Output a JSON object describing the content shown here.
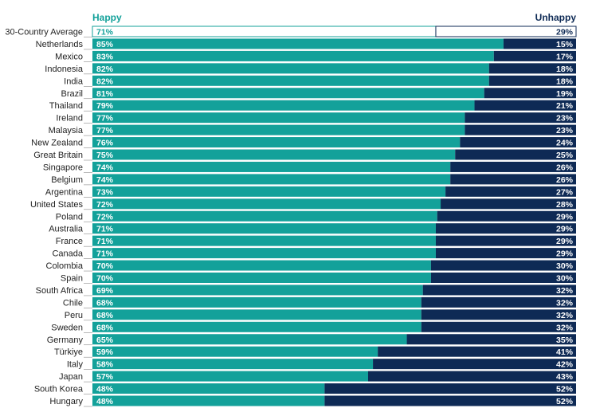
{
  "chart_data": {
    "type": "bar",
    "stacked": true,
    "orientation": "horizontal",
    "legend": {
      "happy_label": "Happy",
      "unhappy_label": "Unhappy",
      "placement": "top"
    },
    "colors": {
      "happy": "#13A19A",
      "unhappy": "#0E2A55",
      "average_bar_fill": "#FFFFFF",
      "average_happy_text": "#13A19A",
      "average_unhappy_text": "#0E2A55",
      "bar_text": "#FFFFFF"
    },
    "xlim": [
      0,
      100
    ],
    "categories": [
      "30-Country Average",
      "Netherlands",
      "Mexico",
      "Indonesia",
      "India",
      "Brazil",
      "Thailand",
      "Ireland",
      "Malaysia",
      "New Zealand",
      "Great Britain",
      "Singapore",
      "Belgium",
      "Argentina",
      "United States",
      "Poland",
      "Australia",
      "France",
      "Canada",
      "Colombia",
      "Spain",
      "South Africa",
      "Chile",
      "Peru",
      "Sweden",
      "Germany",
      "Türkiye",
      "Italy",
      "Japan",
      "South Korea",
      "Hungary"
    ],
    "series": [
      {
        "name": "Happy",
        "values": [
          71,
          85,
          83,
          82,
          82,
          81,
          79,
          77,
          77,
          76,
          75,
          74,
          74,
          73,
          72,
          72,
          71,
          71,
          71,
          70,
          70,
          69,
          68,
          68,
          68,
          65,
          59,
          58,
          57,
          48,
          48
        ]
      },
      {
        "name": "Unhappy",
        "values": [
          29,
          15,
          17,
          18,
          18,
          19,
          21,
          23,
          23,
          24,
          25,
          26,
          26,
          27,
          28,
          29,
          29,
          29,
          29,
          30,
          30,
          32,
          32,
          32,
          32,
          35,
          41,
          42,
          43,
          52,
          52
        ]
      }
    ],
    "happy_labels": [
      "71%",
      "85%",
      "83%",
      "82%",
      "82%",
      "81%",
      "79%",
      "77%",
      "77%",
      "76%",
      "75%",
      "74%",
      "74%",
      "73%",
      "72%",
      "72%",
      "71%",
      "71%",
      "71%",
      "70%",
      "70%",
      "69%",
      "68%",
      "68%",
      "68%",
      "65%",
      "59%",
      "58%",
      "57%",
      "48%",
      "48%"
    ],
    "unhappy_labels": [
      "29%",
      "15%",
      "17%",
      "18%",
      "18%",
      "19%",
      "21%",
      "23%",
      "23%",
      "24%",
      "25%",
      "26%",
      "26%",
      "27%",
      "28%",
      "29%",
      "29%",
      "29%",
      "29%",
      "30%",
      "30%",
      "32%",
      "32%",
      "32%",
      "32%",
      "35%",
      "41%",
      "42%",
      "43%",
      "52%",
      "52%"
    ]
  }
}
